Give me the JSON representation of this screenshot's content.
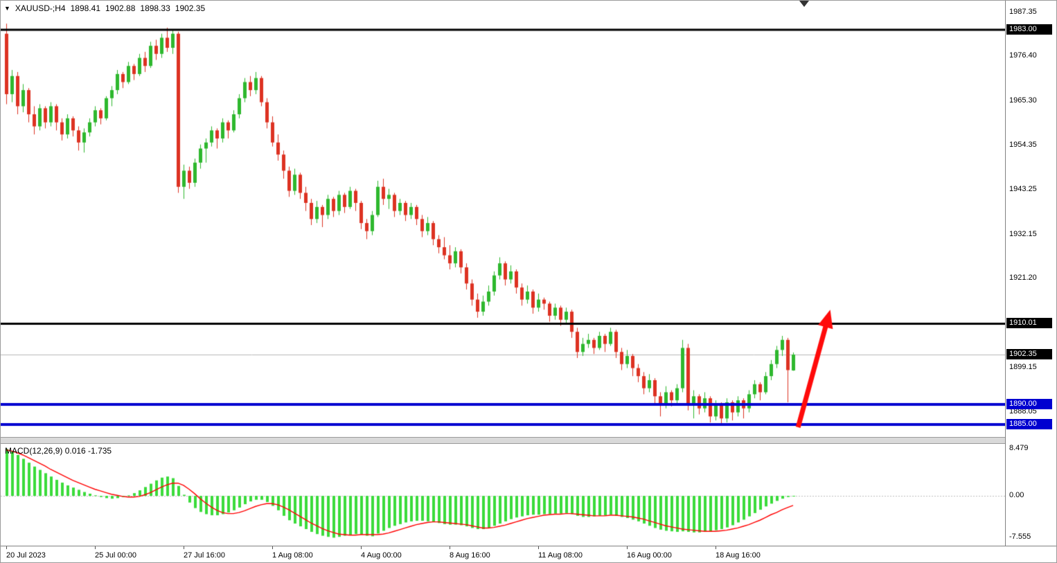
{
  "chart_data": {
    "type": "candlestick+macd",
    "symbol_period": "XAUUSD-;H4",
    "ohlc_display": {
      "open": "1898.41",
      "high": "1902.88",
      "low": "1898.33",
      "close": "1902.35"
    },
    "colors": {
      "up": "#2eb82e",
      "down": "#dd3222",
      "hist": "#3bdb3b",
      "signal": "#ff0000",
      "black_line": "#000000",
      "blue_line": "#0000d0",
      "background": "#ffffff"
    },
    "price_pane": {
      "ylim": [
        1881.9,
        1990.2
      ],
      "axis_labels": [
        1987.35,
        1976.4,
        1965.3,
        1954.35,
        1943.25,
        1932.15,
        1921.2,
        1899.15,
        1888.05
      ],
      "hlines": [
        {
          "price": 1983.0,
          "label": "1983.00",
          "color": "#000000",
          "width": 3,
          "badge_bg": "#000000"
        },
        {
          "price": 1910.01,
          "label": "1910.01",
          "color": "#000000",
          "width": 3,
          "badge_bg": "#000000"
        },
        {
          "price": 1890.0,
          "label": "1890.00",
          "color": "#0000d0",
          "width": 4,
          "badge_bg": "#0000d0"
        },
        {
          "price": 1885.0,
          "label": "1885.00",
          "color": "#0000d0",
          "width": 4,
          "badge_bg": "#0000d0"
        }
      ],
      "current_price": {
        "value": 1902.35,
        "label": "1902.35",
        "line_color": "#b8b8b8",
        "badge_bg": "#000000"
      },
      "candles": [
        [
          1982,
          1984.5,
          1964.5,
          1967
        ],
        [
          1967,
          1973,
          1965,
          1971.5
        ],
        [
          1971.5,
          1972.5,
          1962,
          1964
        ],
        [
          1964,
          1969.5,
          1962.5,
          1968
        ],
        [
          1968,
          1968.5,
          1960,
          1962
        ],
        [
          1962,
          1964,
          1957,
          1959
        ],
        [
          1959,
          1964.5,
          1958,
          1963.5
        ],
        [
          1963.5,
          1964,
          1958.5,
          1960
        ],
        [
          1960,
          1965,
          1959,
          1964
        ],
        [
          1964,
          1964.5,
          1958,
          1960
        ],
        [
          1960,
          1961,
          1955.5,
          1957
        ],
        [
          1957,
          1962,
          1956,
          1961
        ],
        [
          1961,
          1961.5,
          1956.5,
          1958
        ],
        [
          1958,
          1959,
          1953,
          1955
        ],
        [
          1955,
          1958.5,
          1952.5,
          1957.5
        ],
        [
          1957.5,
          1961,
          1956.5,
          1960
        ],
        [
          1960,
          1964,
          1959,
          1963
        ],
        [
          1963,
          1963.5,
          1959.5,
          1961
        ],
        [
          1961,
          1966.5,
          1960.5,
          1966
        ],
        [
          1966,
          1969,
          1964,
          1968
        ],
        [
          1968,
          1973,
          1967,
          1972
        ],
        [
          1972,
          1972.5,
          1968.5,
          1970
        ],
        [
          1970,
          1975,
          1969.5,
          1974
        ],
        [
          1974,
          1974.5,
          1970.5,
          1972
        ],
        [
          1972,
          1977,
          1971.5,
          1976
        ],
        [
          1976,
          1977.5,
          1972.5,
          1974
        ],
        [
          1974,
          1980,
          1973.5,
          1979
        ],
        [
          1979,
          1980.5,
          1975.5,
          1977
        ],
        [
          1977,
          1982,
          1976,
          1981
        ],
        [
          1981,
          1983.5,
          1977.5,
          1978.5
        ],
        [
          1978.5,
          1983,
          1977,
          1982
        ],
        [
          1982,
          1982.5,
          1942.5,
          1944
        ],
        [
          1944,
          1949.5,
          1941,
          1948
        ],
        [
          1948,
          1949,
          1943.5,
          1945
        ],
        [
          1945,
          1951,
          1944,
          1950
        ],
        [
          1950,
          1954.5,
          1948.5,
          1953.5
        ],
        [
          1953.5,
          1956,
          1950,
          1955
        ],
        [
          1955,
          1959,
          1954,
          1958
        ],
        [
          1958,
          1958.5,
          1953.5,
          1956
        ],
        [
          1956,
          1961,
          1955,
          1960
        ],
        [
          1960,
          1960.5,
          1956,
          1958
        ],
        [
          1958,
          1963,
          1957.5,
          1962
        ],
        [
          1962,
          1967,
          1961,
          1966
        ],
        [
          1966,
          1971,
          1965,
          1970
        ],
        [
          1970,
          1971.5,
          1966.5,
          1968
        ],
        [
          1968,
          1972.5,
          1967,
          1971
        ],
        [
          1971,
          1971.5,
          1964,
          1965
        ],
        [
          1965,
          1966,
          1958.5,
          1960
        ],
        [
          1960,
          1961.5,
          1954,
          1955
        ],
        [
          1955,
          1957,
          1950.5,
          1952
        ],
        [
          1952,
          1953,
          1946,
          1948
        ],
        [
          1948,
          1949,
          1941.5,
          1943
        ],
        [
          1943,
          1948.5,
          1942,
          1947
        ],
        [
          1947,
          1947.5,
          1941,
          1942.5
        ],
        [
          1942.5,
          1944,
          1938,
          1940
        ],
        [
          1940,
          1941,
          1934.5,
          1936
        ],
        [
          1936,
          1940.5,
          1935,
          1939
        ],
        [
          1939,
          1939.5,
          1934,
          1937
        ],
        [
          1937,
          1942,
          1936,
          1941
        ],
        [
          1941,
          1941.5,
          1936.5,
          1938
        ],
        [
          1938,
          1943,
          1937,
          1942
        ],
        [
          1942,
          1942.5,
          1937.5,
          1939
        ],
        [
          1939,
          1944,
          1938.5,
          1943
        ],
        [
          1943,
          1943.5,
          1938,
          1940
        ],
        [
          1940,
          1940.5,
          1933.5,
          1935
        ],
        [
          1935,
          1936,
          1931,
          1933
        ],
        [
          1933,
          1938,
          1932,
          1937
        ],
        [
          1937,
          1945.5,
          1936.5,
          1944
        ],
        [
          1944,
          1946,
          1939.5,
          1941
        ],
        [
          1941,
          1943.5,
          1938.5,
          1942
        ],
        [
          1942,
          1942.5,
          1936.5,
          1938
        ],
        [
          1938,
          1941,
          1937,
          1940
        ],
        [
          1940,
          1940.5,
          1935.5,
          1937
        ],
        [
          1937,
          1940,
          1936,
          1939
        ],
        [
          1939,
          1939.5,
          1934.5,
          1936
        ],
        [
          1936,
          1937,
          1931.5,
          1933
        ],
        [
          1933,
          1936.5,
          1932,
          1935
        ],
        [
          1935,
          1935.5,
          1929.5,
          1931
        ],
        [
          1931,
          1932,
          1927.5,
          1929
        ],
        [
          1929,
          1931.5,
          1926,
          1927
        ],
        [
          1927,
          1929.5,
          1923.5,
          1925
        ],
        [
          1925,
          1929,
          1924,
          1928
        ],
        [
          1928,
          1928.5,
          1922.5,
          1924
        ],
        [
          1924,
          1925,
          1918.5,
          1920
        ],
        [
          1920,
          1921,
          1914.5,
          1916
        ],
        [
          1916,
          1917.5,
          1911.5,
          1913
        ],
        [
          1913,
          1917,
          1912,
          1915.5
        ],
        [
          1915.5,
          1919.5,
          1914.5,
          1918
        ],
        [
          1918,
          1923,
          1917,
          1922
        ],
        [
          1922,
          1926.5,
          1921,
          1925
        ],
        [
          1925,
          1925.5,
          1919.5,
          1921
        ],
        [
          1921,
          1924.5,
          1920,
          1923
        ],
        [
          1923,
          1923.5,
          1917.5,
          1919
        ],
        [
          1919,
          1920,
          1914.5,
          1916
        ],
        [
          1916,
          1919.5,
          1915,
          1918
        ],
        [
          1918,
          1918.5,
          1912.5,
          1914
        ],
        [
          1914,
          1917.5,
          1913,
          1916
        ],
        [
          1916,
          1916.5,
          1913.5,
          1915
        ],
        [
          1915,
          1915.5,
          1910.5,
          1912
        ],
        [
          1912,
          1915,
          1911,
          1914
        ],
        [
          1914,
          1914.5,
          1909.5,
          1911
        ],
        [
          1911,
          1914,
          1910,
          1913
        ],
        [
          1913,
          1913.5,
          1906.5,
          1908
        ],
        [
          1908,
          1909,
          1901.5,
          1903
        ],
        [
          1903,
          1906.5,
          1902,
          1905
        ],
        [
          1905,
          1907.5,
          1904,
          1906
        ],
        [
          1906,
          1906.5,
          1902.5,
          1904
        ],
        [
          1904,
          1908,
          1903.5,
          1907
        ],
        [
          1907,
          1907.5,
          1903,
          1905
        ],
        [
          1905,
          1909,
          1904.5,
          1908
        ],
        [
          1908,
          1908.5,
          1901.5,
          1903
        ],
        [
          1903,
          1904,
          1898.5,
          1900
        ],
        [
          1900,
          1903.5,
          1899,
          1902
        ],
        [
          1902,
          1902.5,
          1897,
          1899
        ],
        [
          1899,
          1900,
          1895.5,
          1897
        ],
        [
          1897,
          1898,
          1892.5,
          1894
        ],
        [
          1894,
          1897.5,
          1893,
          1896
        ],
        [
          1896,
          1896.5,
          1890,
          1892
        ],
        [
          1892,
          1893,
          1887,
          1890
        ],
        [
          1890,
          1894.5,
          1889,
          1893
        ],
        [
          1893,
          1893.5,
          1889.5,
          1891
        ],
        [
          1891,
          1895,
          1890,
          1894
        ],
        [
          1894,
          1906,
          1893,
          1904
        ],
        [
          1904,
          1905,
          1888.5,
          1890
        ],
        [
          1890,
          1893.5,
          1886.5,
          1892
        ],
        [
          1892,
          1892.5,
          1887.5,
          1889
        ],
        [
          1889,
          1893,
          1888,
          1891.5
        ],
        [
          1891.5,
          1892,
          1885.5,
          1887
        ],
        [
          1887,
          1891,
          1886,
          1890
        ],
        [
          1890,
          1890.5,
          1884.8,
          1886.5
        ],
        [
          1886.5,
          1891.5,
          1885.5,
          1890.5
        ],
        [
          1890.5,
          1891,
          1886,
          1888
        ],
        [
          1888,
          1892,
          1887,
          1891
        ],
        [
          1891,
          1891.5,
          1886.5,
          1889
        ],
        [
          1889,
          1893.5,
          1888,
          1892.5
        ],
        [
          1892.5,
          1896,
          1891.5,
          1895
        ],
        [
          1895,
          1895.5,
          1891,
          1893
        ],
        [
          1893,
          1898,
          1892.5,
          1897
        ],
        [
          1897,
          1901,
          1896,
          1900
        ],
        [
          1900,
          1904.5,
          1899,
          1903.5
        ],
        [
          1903.5,
          1907,
          1902,
          1906
        ],
        [
          1906,
          1906.5,
          1890.5,
          1898.5
        ],
        [
          1898.41,
          1902.88,
          1898.33,
          1902.35
        ]
      ]
    },
    "macd_pane": {
      "label": "MACD(12,26,9) 0.016 -1.735",
      "ylim": [
        -9.0,
        9.4
      ],
      "axis_labels": [
        {
          "text": "8.479",
          "value": 8.479
        },
        {
          "text": "0.00",
          "value": 0
        },
        {
          "text": "-7.555",
          "value": -7.555
        }
      ],
      "histogram": [
        8.479,
        8.0,
        7.4,
        6.7,
        6.0,
        5.3,
        4.7,
        4.1,
        3.5,
        2.9,
        2.4,
        1.9,
        1.5,
        1.1,
        0.7,
        0.4,
        0.1,
        -0.2,
        -0.4,
        -0.5,
        -0.4,
        -0.2,
        0.1,
        0.5,
        1.0,
        1.6,
        2.2,
        2.8,
        3.3,
        3.5,
        3.2,
        1.8,
        0.2,
        -1.2,
        -2.2,
        -2.9,
        -3.3,
        -3.5,
        -3.5,
        -3.3,
        -3.0,
        -2.6,
        -2.1,
        -1.5,
        -1.0,
        -0.7,
        -0.7,
        -1.1,
        -1.8,
        -2.6,
        -3.6,
        -4.4,
        -5.0,
        -5.5,
        -6.0,
        -6.5,
        -6.9,
        -7.2,
        -7.4,
        -7.555,
        -7.4,
        -7.2,
        -7.0,
        -6.9,
        -7.0,
        -7.2,
        -7.3,
        -6.8,
        -6.3,
        -5.8,
        -5.4,
        -5.1,
        -4.8,
        -4.6,
        -4.5,
        -4.5,
        -4.6,
        -4.7,
        -4.9,
        -5.1,
        -5.2,
        -5.2,
        -5.3,
        -5.5,
        -5.8,
        -6.0,
        -6.0,
        -5.8,
        -5.4,
        -5.0,
        -4.6,
        -4.2,
        -3.9,
        -3.7,
        -3.5,
        -3.4,
        -3.4,
        -3.3,
        -3.3,
        -3.2,
        -3.2,
        -3.1,
        -3.3,
        -3.6,
        -3.8,
        -3.8,
        -3.7,
        -3.6,
        -3.5,
        -3.4,
        -3.6,
        -3.8,
        -4.0,
        -4.3,
        -4.6,
        -5.0,
        -5.4,
        -5.8,
        -6.1,
        -6.3,
        -6.4,
        -6.5,
        -6.4,
        -6.5,
        -6.6,
        -6.6,
        -6.5,
        -6.4,
        -6.2,
        -6.0,
        -5.7,
        -5.3,
        -4.8,
        -4.3,
        -3.7,
        -3.1,
        -2.5,
        -1.9,
        -1.4,
        -0.9,
        -0.5,
        -0.2,
        0.016
      ],
      "signal": [
        8.3,
        8.1,
        7.8,
        7.4,
        6.9,
        6.4,
        5.9,
        5.4,
        4.8,
        4.3,
        3.8,
        3.3,
        2.8,
        2.4,
        2.0,
        1.6,
        1.2,
        0.9,
        0.6,
        0.3,
        0.1,
        -0.1,
        -0.2,
        -0.2,
        -0.1,
        0.2,
        0.6,
        1.1,
        1.6,
        2.0,
        2.3,
        2.3,
        1.9,
        1.2,
        0.4,
        -0.5,
        -1.3,
        -2.0,
        -2.6,
        -3.0,
        -3.2,
        -3.2,
        -3.0,
        -2.7,
        -2.3,
        -1.9,
        -1.6,
        -1.4,
        -1.4,
        -1.6,
        -2.0,
        -2.5,
        -3.1,
        -3.7,
        -4.3,
        -4.9,
        -5.4,
        -5.9,
        -6.3,
        -6.6,
        -6.9,
        -7.0,
        -7.1,
        -7.1,
        -7.0,
        -7.0,
        -7.0,
        -7.0,
        -6.9,
        -6.7,
        -6.4,
        -6.1,
        -5.8,
        -5.5,
        -5.2,
        -5.0,
        -4.8,
        -4.7,
        -4.7,
        -4.8,
        -4.9,
        -5.0,
        -5.1,
        -5.2,
        -5.4,
        -5.6,
        -5.8,
        -5.8,
        -5.7,
        -5.5,
        -5.3,
        -5.0,
        -4.7,
        -4.4,
        -4.1,
        -3.9,
        -3.7,
        -3.5,
        -3.4,
        -3.3,
        -3.3,
        -3.2,
        -3.2,
        -3.3,
        -3.4,
        -3.5,
        -3.6,
        -3.6,
        -3.6,
        -3.5,
        -3.5,
        -3.6,
        -3.7,
        -3.8,
        -4.0,
        -4.2,
        -4.5,
        -4.8,
        -5.1,
        -5.4,
        -5.6,
        -5.8,
        -6.0,
        -6.1,
        -6.2,
        -6.3,
        -6.4,
        -6.4,
        -6.4,
        -6.3,
        -6.2,
        -6.0,
        -5.8,
        -5.5,
        -5.2,
        -4.8,
        -4.4,
        -3.9,
        -3.4,
        -3.0,
        -2.5,
        -2.1,
        -1.735
      ]
    },
    "time_axis": {
      "labels": [
        {
          "text": "20 Jul 2023",
          "bar": 0
        },
        {
          "text": "25 Jul 00:00",
          "bar": 16
        },
        {
          "text": "27 Jul 16:00",
          "bar": 32
        },
        {
          "text": "1 Aug 08:00",
          "bar": 48
        },
        {
          "text": "4 Aug 00:00",
          "bar": 64
        },
        {
          "text": "8 Aug 16:00",
          "bar": 80
        },
        {
          "text": "11 Aug 08:00",
          "bar": 96
        },
        {
          "text": "16 Aug 00:00",
          "bar": 112
        },
        {
          "text": "18 Aug 16:00",
          "bar": 128
        }
      ]
    },
    "annotation_arrow": {
      "from_bar": 142.9,
      "from_price": 1884.3,
      "to_bar": 148.7,
      "to_price": 1913.5,
      "color": "#ff0b0b",
      "shaft_width": 7
    }
  }
}
